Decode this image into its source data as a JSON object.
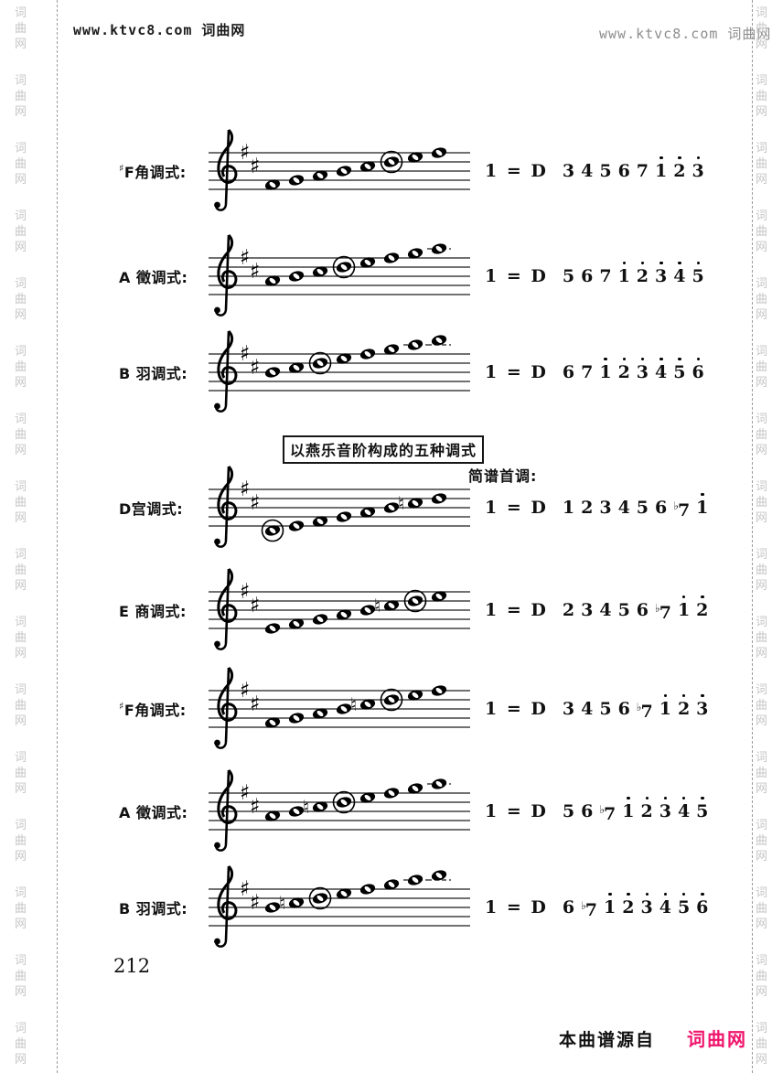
{
  "header": {
    "watermark_left": "www.ktvc8.com 词曲网",
    "watermark_right": "www.ktvc8.com 词曲网"
  },
  "side_watermark": {
    "chars": [
      "词",
      "曲",
      "网"
    ],
    "repeat": 16
  },
  "section": {
    "title": "以燕乐音阶构成的五种调式",
    "caption": "简谱首调:"
  },
  "staves": [
    {
      "accidental": "♯",
      "label": "F角调式:",
      "clef": "treble",
      "key_signature": [
        "F#",
        "C#"
      ],
      "pitches": [
        "F#4",
        "G4",
        "A4",
        "B4",
        "C#5",
        "D5",
        "E5",
        "F#5"
      ],
      "circled_index": 6,
      "natural_index": null,
      "jianpu": {
        "prefix": "1 = D",
        "notes": [
          {
            "d": "3"
          },
          {
            "d": "4"
          },
          {
            "d": "5"
          },
          {
            "d": "6"
          },
          {
            "d": "7"
          },
          {
            "d": "1",
            "dot": true
          },
          {
            "d": "2",
            "dot": true
          },
          {
            "d": "3",
            "dot": true
          }
        ]
      }
    },
    {
      "accidental": "",
      "label": "A 徵调式:",
      "clef": "treble",
      "key_signature": [
        "F#",
        "C#"
      ],
      "pitches": [
        "A4",
        "B4",
        "C#5",
        "D5",
        "E5",
        "F#5",
        "G5",
        "A5"
      ],
      "circled_index": 4,
      "natural_index": null,
      "jianpu": {
        "prefix": "1 = D",
        "notes": [
          {
            "d": "5"
          },
          {
            "d": "6"
          },
          {
            "d": "7"
          },
          {
            "d": "1",
            "dot": true
          },
          {
            "d": "2",
            "dot": true
          },
          {
            "d": "3",
            "dot": true
          },
          {
            "d": "4",
            "dot": true
          },
          {
            "d": "5",
            "dot": true
          }
        ]
      }
    },
    {
      "accidental": "",
      "label": "B 羽调式:",
      "clef": "treble",
      "key_signature": [
        "F#",
        "C#"
      ],
      "pitches": [
        "B4",
        "C#5",
        "D5",
        "E5",
        "F#5",
        "G5",
        "A5",
        "B5"
      ],
      "circled_index": 3,
      "natural_index": null,
      "jianpu": {
        "prefix": "1 = D",
        "notes": [
          {
            "d": "6"
          },
          {
            "d": "7"
          },
          {
            "d": "1",
            "dot": true
          },
          {
            "d": "2",
            "dot": true
          },
          {
            "d": "3",
            "dot": true
          },
          {
            "d": "4",
            "dot": true
          },
          {
            "d": "5",
            "dot": true
          },
          {
            "d": "6",
            "dot": true
          }
        ]
      }
    },
    {
      "accidental": "",
      "label": "D宫调式:",
      "clef": "treble",
      "key_signature": [
        "F#",
        "C#"
      ],
      "pitches": [
        "D4",
        "E4",
        "F#4",
        "G4",
        "A4",
        "B4",
        "C5",
        "D5"
      ],
      "circled_index": 1,
      "natural_index": 7,
      "jianpu": {
        "prefix": "1 = D",
        "notes": [
          {
            "d": "1"
          },
          {
            "d": "2"
          },
          {
            "d": "3"
          },
          {
            "d": "4"
          },
          {
            "d": "5"
          },
          {
            "d": "6"
          },
          {
            "d": "7",
            "flat": true
          },
          {
            "d": "1",
            "dot": true
          }
        ]
      }
    },
    {
      "accidental": "",
      "label": "E 商调式:",
      "clef": "treble",
      "key_signature": [
        "F#",
        "C#"
      ],
      "pitches": [
        "E4",
        "F#4",
        "G4",
        "A4",
        "B4",
        "C5",
        "D5",
        "E5"
      ],
      "circled_index": 7,
      "natural_index": 6,
      "jianpu": {
        "prefix": "1 = D",
        "notes": [
          {
            "d": "2"
          },
          {
            "d": "3"
          },
          {
            "d": "4"
          },
          {
            "d": "5"
          },
          {
            "d": "6"
          },
          {
            "d": "7",
            "flat": true
          },
          {
            "d": "1",
            "dot": true
          },
          {
            "d": "2",
            "dot": true
          }
        ]
      }
    },
    {
      "accidental": "♯",
      "label": "F角调式:",
      "clef": "treble",
      "key_signature": [
        "F#",
        "C#"
      ],
      "pitches": [
        "F#4",
        "G4",
        "A4",
        "B4",
        "C5",
        "D5",
        "E5",
        "F#5"
      ],
      "circled_index": 6,
      "natural_index": 5,
      "jianpu": {
        "prefix": "1 = D",
        "notes": [
          {
            "d": "3"
          },
          {
            "d": "4"
          },
          {
            "d": "5"
          },
          {
            "d": "6"
          },
          {
            "d": "7",
            "flat": true
          },
          {
            "d": "1",
            "dot": true
          },
          {
            "d": "2",
            "dot": true
          },
          {
            "d": "3",
            "dot": true
          }
        ]
      }
    },
    {
      "accidental": "",
      "label": "A 徵调式:",
      "clef": "treble",
      "key_signature": [
        "F#",
        "C#"
      ],
      "pitches": [
        "A4",
        "B4",
        "C5",
        "D5",
        "E5",
        "F#5",
        "G5",
        "A5"
      ],
      "circled_index": 4,
      "natural_index": 3,
      "jianpu": {
        "prefix": "1 = D",
        "notes": [
          {
            "d": "5"
          },
          {
            "d": "6"
          },
          {
            "d": "7",
            "flat": true
          },
          {
            "d": "1",
            "dot": true
          },
          {
            "d": "2",
            "dot": true
          },
          {
            "d": "3",
            "dot": true
          },
          {
            "d": "4",
            "dot": true
          },
          {
            "d": "5",
            "dot": true
          }
        ]
      }
    },
    {
      "accidental": "",
      "label": "B 羽调式:",
      "clef": "treble",
      "key_signature": [
        "F#",
        "C#"
      ],
      "pitches": [
        "B4",
        "C5",
        "D5",
        "E5",
        "F#5",
        "G5",
        "A5",
        "B5"
      ],
      "circled_index": 3,
      "natural_index": 2,
      "jianpu": {
        "prefix": "1 = D",
        "notes": [
          {
            "d": "6"
          },
          {
            "d": "7",
            "flat": true
          },
          {
            "d": "1",
            "dot": true
          },
          {
            "d": "2",
            "dot": true
          },
          {
            "d": "3",
            "dot": true
          },
          {
            "d": "4",
            "dot": true
          },
          {
            "d": "5",
            "dot": true
          },
          {
            "d": "6",
            "dot": true
          }
        ]
      }
    }
  ],
  "footer": {
    "page_number": "212",
    "source_label": "本曲谱源自",
    "brand": "词曲网",
    "brand_color": "#f0156c"
  }
}
